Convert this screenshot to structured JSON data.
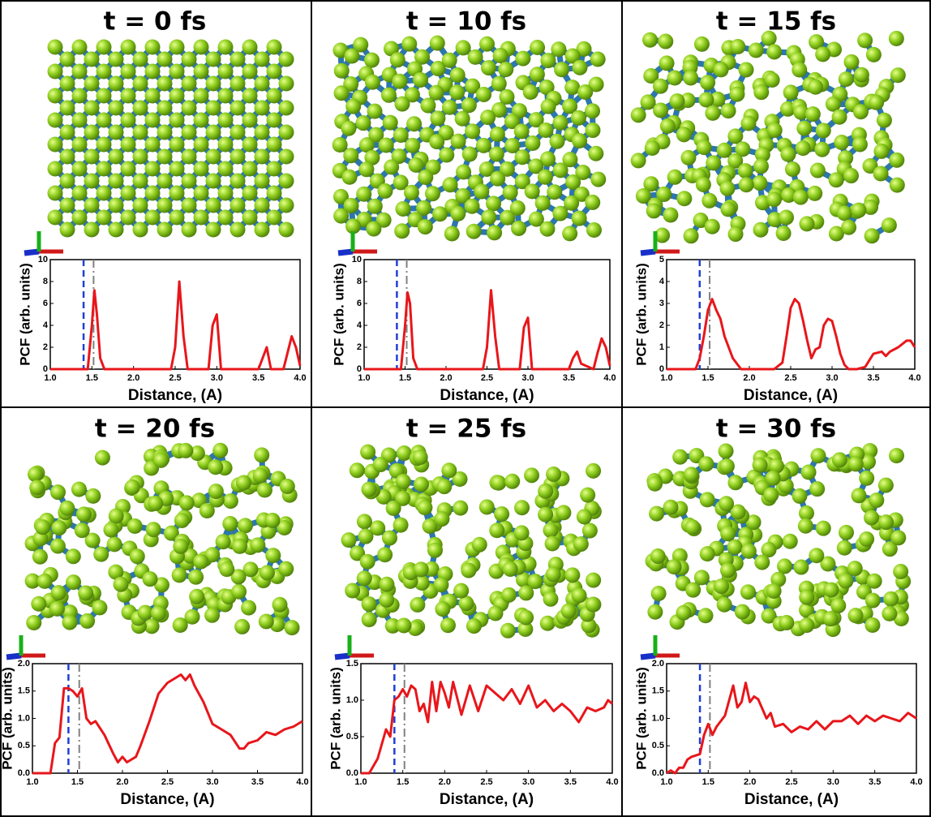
{
  "chart_data": [
    {
      "type": "line",
      "title": "t = 0 fs",
      "xlabel": "Distance, (A)",
      "ylabel": "PCF (arb. units)",
      "color": "#e8161b",
      "x": [
        1.0,
        1.45,
        1.5,
        1.53,
        1.56,
        1.6,
        1.65,
        2.45,
        2.5,
        2.55,
        2.6,
        2.65,
        2.9,
        2.95,
        3.0,
        3.05,
        3.5,
        3.55,
        3.6,
        3.65,
        3.8,
        3.85,
        3.9,
        3.95,
        4.0
      ],
      "values": [
        0,
        0,
        4,
        7.2,
        5,
        1,
        0,
        0,
        2,
        8,
        3,
        0,
        0,
        4,
        5,
        0,
        0,
        1,
        2,
        0,
        0,
        1.5,
        3,
        2,
        0.3
      ],
      "xlim": [
        1,
        4
      ],
      "xticks": [
        {
          "value": 1,
          "label": "1.0"
        },
        {
          "value": 1.5,
          "label": "1.5"
        },
        {
          "value": 2,
          "label": "2.0"
        },
        {
          "value": 2.5,
          "label": "2.5"
        },
        {
          "value": 3,
          "label": "3.0"
        },
        {
          "value": 3.5,
          "label": "3.5"
        },
        {
          "value": 4,
          "label": "4.0"
        }
      ],
      "ylim": [
        0,
        10
      ],
      "yticks": [
        0,
        2,
        4,
        6,
        8,
        10
      ],
      "reference_lines": [
        {
          "x": 1.4,
          "color": "#1f3fd6",
          "style": "dashed"
        },
        {
          "x": 1.52,
          "color": "#808080",
          "style": "dashdot"
        }
      ]
    },
    {
      "type": "line",
      "title": "t = 10 fs",
      "xlabel": "Distance, (A)",
      "ylabel": "PCF (arb. units)",
      "color": "#e8161b",
      "x": [
        1.0,
        1.45,
        1.5,
        1.53,
        1.56,
        1.6,
        1.65,
        2.45,
        2.5,
        2.55,
        2.6,
        2.65,
        2.9,
        2.95,
        3.0,
        3.05,
        3.5,
        3.55,
        3.6,
        3.65,
        3.8,
        3.85,
        3.9,
        3.95,
        4.0
      ],
      "values": [
        0,
        0,
        4,
        7,
        6,
        1,
        0,
        0,
        2,
        7.2,
        3,
        0,
        0,
        3.8,
        4.7,
        0,
        0,
        1,
        1.6,
        0.5,
        0,
        1.5,
        2.8,
        2,
        0.3
      ],
      "xlim": [
        1,
        4
      ],
      "xticks": [
        {
          "value": 1,
          "label": "1.0"
        },
        {
          "value": 1.5,
          "label": "1.5"
        },
        {
          "value": 2,
          "label": "2.0"
        },
        {
          "value": 2.5,
          "label": "2.5"
        },
        {
          "value": 3,
          "label": "3.0"
        },
        {
          "value": 3.5,
          "label": "3.5"
        },
        {
          "value": 4,
          "label": "4.0"
        }
      ],
      "ylim": [
        0,
        10
      ],
      "yticks": [
        0,
        2,
        4,
        6,
        8,
        10
      ],
      "reference_lines": [
        {
          "x": 1.4,
          "color": "#1f3fd6",
          "style": "dashed"
        },
        {
          "x": 1.52,
          "color": "#808080",
          "style": "dashdot"
        }
      ]
    },
    {
      "type": "line",
      "title": "t = 15 fs",
      "xlabel": "Distance, (A)",
      "ylabel": "PCF (arb. units)",
      "color": "#e8161b",
      "x": [
        1.0,
        1.35,
        1.4,
        1.45,
        1.5,
        1.55,
        1.6,
        1.65,
        1.7,
        1.75,
        1.8,
        1.9,
        2.3,
        2.4,
        2.45,
        2.5,
        2.55,
        2.6,
        2.65,
        2.7,
        2.75,
        2.8,
        2.85,
        2.9,
        2.95,
        3.0,
        3.05,
        3.1,
        3.15,
        3.2,
        3.3,
        3.4,
        3.5,
        3.6,
        3.65,
        3.7,
        3.8,
        3.9,
        3.95,
        4.0
      ],
      "values": [
        0,
        0,
        0.5,
        1.5,
        2.7,
        3.2,
        2.7,
        2.3,
        1.5,
        1.0,
        0.5,
        0,
        0,
        0.3,
        1.5,
        2.8,
        3.2,
        3.0,
        2.2,
        1.3,
        0.5,
        0.9,
        1.0,
        2.0,
        2.3,
        2.2,
        1.5,
        0.7,
        0.2,
        0,
        0,
        0.1,
        0.7,
        0.8,
        0.6,
        0.8,
        1.0,
        1.3,
        1.3,
        1.0
      ],
      "xlim": [
        1,
        4
      ],
      "xticks": [
        {
          "value": 1,
          "label": "1.0"
        },
        {
          "value": 1.5,
          "label": "1.5"
        },
        {
          "value": 2,
          "label": "2.0"
        },
        {
          "value": 2.5,
          "label": "2.5"
        },
        {
          "value": 3,
          "label": "3.0"
        },
        {
          "value": 3.5,
          "label": "3.5"
        },
        {
          "value": 4,
          "label": "4.0"
        }
      ],
      "ylim": [
        0,
        5
      ],
      "yticks": [
        0,
        1,
        2,
        3,
        4,
        5
      ],
      "reference_lines": [
        {
          "x": 1.4,
          "color": "#1f3fd6",
          "style": "dashed"
        },
        {
          "x": 1.52,
          "color": "#808080",
          "style": "dashdot"
        }
      ]
    },
    {
      "type": "line",
      "title": "t = 20 fs",
      "xlabel": "Distance, (A)",
      "ylabel": "PCF (arb. units)",
      "color": "#e8161b",
      "x": [
        1.0,
        1.1,
        1.2,
        1.25,
        1.3,
        1.35,
        1.4,
        1.45,
        1.5,
        1.55,
        1.6,
        1.65,
        1.7,
        1.8,
        1.9,
        1.95,
        2.0,
        2.05,
        2.1,
        2.15,
        2.2,
        2.3,
        2.4,
        2.5,
        2.6,
        2.65,
        2.7,
        2.75,
        2.8,
        2.9,
        3.0,
        3.1,
        3.2,
        3.3,
        3.35,
        3.4,
        3.5,
        3.6,
        3.7,
        3.8,
        3.9,
        4.0
      ],
      "values": [
        0,
        0,
        0,
        0.55,
        0.65,
        1.55,
        1.55,
        1.5,
        1.4,
        1.55,
        1.0,
        0.9,
        0.95,
        0.7,
        0.35,
        0.2,
        0.3,
        0.2,
        0.25,
        0.3,
        0.5,
        0.95,
        1.45,
        1.65,
        1.75,
        1.8,
        1.7,
        1.8,
        1.6,
        1.3,
        0.9,
        0.8,
        0.7,
        0.45,
        0.45,
        0.55,
        0.6,
        0.75,
        0.7,
        0.8,
        0.85,
        0.95
      ],
      "xlim": [
        1,
        4
      ],
      "xticks": [
        {
          "value": 1,
          "label": "1.0"
        },
        {
          "value": 1.5,
          "label": "1.5"
        },
        {
          "value": 2,
          "label": "2.0"
        },
        {
          "value": 2.5,
          "label": "2.5"
        },
        {
          "value": 3,
          "label": "3.0"
        },
        {
          "value": 3.5,
          "label": "3.5"
        },
        {
          "value": 4,
          "label": "4.0"
        }
      ],
      "ylim": [
        0,
        2
      ],
      "yticks": [
        {
          "value": 0,
          "label": "0.0"
        },
        {
          "value": 0.5,
          "label": "0.5"
        },
        {
          "value": 1,
          "label": "1.0"
        },
        {
          "value": 1.5,
          "label": "1.5"
        },
        {
          "value": 2,
          "label": "2.0"
        }
      ],
      "reference_lines": [
        {
          "x": 1.4,
          "color": "#1f3fd6",
          "style": "dashed"
        },
        {
          "x": 1.52,
          "color": "#808080",
          "style": "dashdot"
        }
      ]
    },
    {
      "type": "line",
      "title": "t = 25 fs",
      "xlabel": "Distance, (A)",
      "ylabel": "PCF (arb. units)",
      "color": "#e8161b",
      "x": [
        1.0,
        1.1,
        1.2,
        1.3,
        1.35,
        1.4,
        1.45,
        1.5,
        1.55,
        1.6,
        1.65,
        1.7,
        1.75,
        1.8,
        1.85,
        1.9,
        1.95,
        2.0,
        2.05,
        2.1,
        2.2,
        2.3,
        2.4,
        2.5,
        2.6,
        2.7,
        2.8,
        2.9,
        3.0,
        3.1,
        3.2,
        3.3,
        3.4,
        3.5,
        3.6,
        3.7,
        3.8,
        3.9,
        3.95,
        4.0
      ],
      "values": [
        0,
        0,
        0.2,
        0.6,
        0.5,
        1.0,
        1.05,
        1.15,
        1.05,
        1.2,
        1.15,
        0.85,
        0.95,
        0.7,
        1.25,
        0.85,
        1.25,
        1.1,
        0.9,
        1.25,
        0.8,
        1.2,
        0.85,
        1.2,
        1.1,
        1.0,
        1.15,
        0.95,
        1.2,
        0.9,
        1.0,
        0.85,
        0.95,
        0.85,
        0.7,
        0.9,
        0.85,
        0.9,
        1.0,
        0.95
      ],
      "xlim": [
        1,
        4
      ],
      "xticks": [
        {
          "value": 1,
          "label": "1.0"
        },
        {
          "value": 1.5,
          "label": "1.5"
        },
        {
          "value": 2,
          "label": "2.0"
        },
        {
          "value": 2.5,
          "label": "2.5"
        },
        {
          "value": 3,
          "label": "3.0"
        },
        {
          "value": 3.5,
          "label": "3.5"
        },
        {
          "value": 4,
          "label": "4.0"
        }
      ],
      "ylim": [
        0,
        1.5
      ],
      "yticks": [
        {
          "value": 0,
          "label": "0.0"
        },
        {
          "value": 0.5,
          "label": "0.5"
        },
        {
          "value": 1,
          "label": "1.0"
        },
        {
          "value": 1.5,
          "label": "1.5"
        }
      ],
      "reference_lines": [
        {
          "x": 1.4,
          "color": "#1f3fd6",
          "style": "dashed"
        },
        {
          "x": 1.52,
          "color": "#808080",
          "style": "dashdot"
        }
      ]
    },
    {
      "type": "line",
      "title": "t = 30 fs",
      "xlabel": "Distance, (A)",
      "ylabel": "PCF (arb. units)",
      "color": "#e8161b",
      "x": [
        1.0,
        1.05,
        1.1,
        1.15,
        1.2,
        1.25,
        1.3,
        1.4,
        1.45,
        1.5,
        1.55,
        1.6,
        1.7,
        1.8,
        1.85,
        1.9,
        1.95,
        2.0,
        2.05,
        2.1,
        2.2,
        2.25,
        2.3,
        2.4,
        2.5,
        2.6,
        2.7,
        2.8,
        2.9,
        3.0,
        3.1,
        3.2,
        3.3,
        3.4,
        3.5,
        3.6,
        3.7,
        3.8,
        3.9,
        4.0
      ],
      "values": [
        0,
        0.05,
        0,
        0.1,
        0.1,
        0.25,
        0.3,
        0.35,
        0.7,
        0.9,
        0.7,
        0.85,
        1.05,
        1.6,
        1.2,
        1.3,
        1.65,
        1.3,
        1.4,
        1.35,
        1.0,
        1.1,
        0.85,
        0.9,
        0.75,
        0.85,
        0.8,
        0.95,
        0.8,
        0.95,
        0.95,
        1.05,
        0.9,
        1.05,
        0.95,
        1.05,
        1.0,
        0.95,
        1.1,
        1.0
      ],
      "xlim": [
        1,
        4
      ],
      "xticks": [
        {
          "value": 1,
          "label": "1.0"
        },
        {
          "value": 1.5,
          "label": "1.5"
        },
        {
          "value": 2,
          "label": "2.0"
        },
        {
          "value": 2.5,
          "label": "2.5"
        },
        {
          "value": 3,
          "label": "3.0"
        },
        {
          "value": 3.5,
          "label": "3.5"
        },
        {
          "value": 4,
          "label": "4.0"
        }
      ],
      "ylim": [
        0,
        2
      ],
      "yticks": [
        {
          "value": 0,
          "label": "0.0"
        },
        {
          "value": 0.5,
          "label": "0.5"
        },
        {
          "value": 1,
          "label": "1.0"
        },
        {
          "value": 1.5,
          "label": "1.5"
        },
        {
          "value": 2,
          "label": "2.0"
        }
      ],
      "reference_lines": [
        {
          "x": 1.4,
          "color": "#1f3fd6",
          "style": "dashed"
        },
        {
          "x": 1.52,
          "color": "#808080",
          "style": "dashdot"
        }
      ]
    }
  ]
}
